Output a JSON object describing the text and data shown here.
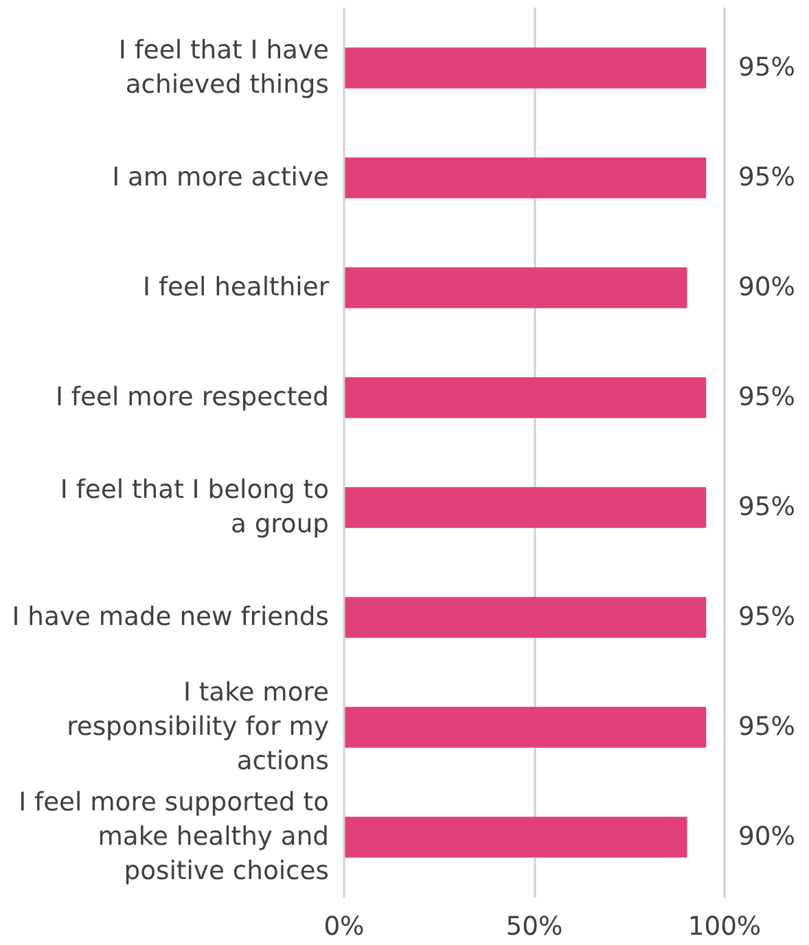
{
  "chart_data": {
    "type": "bar",
    "orientation": "horizontal",
    "categories": [
      "I feel that I have achieved things",
      "I am more active",
      "I feel healthier",
      "I feel more respected",
      "I feel that I belong to a group",
      "I have made new friends",
      "I take more responsibility for my actions",
      "I feel more supported to make healthy and positive choices"
    ],
    "values": [
      95,
      95,
      90,
      95,
      95,
      95,
      95,
      90
    ],
    "value_labels": [
      "95%",
      "95%",
      "90%",
      "95%",
      "95%",
      "95%",
      "95%",
      "90%"
    ],
    "color": "#e0417b",
    "xlim": [
      0,
      100
    ],
    "xticks": [
      {
        "value": 0,
        "label": "0%"
      },
      {
        "value": 50,
        "label": "50%"
      },
      {
        "value": 100,
        "label": "100%"
      }
    ],
    "grid": "x"
  }
}
